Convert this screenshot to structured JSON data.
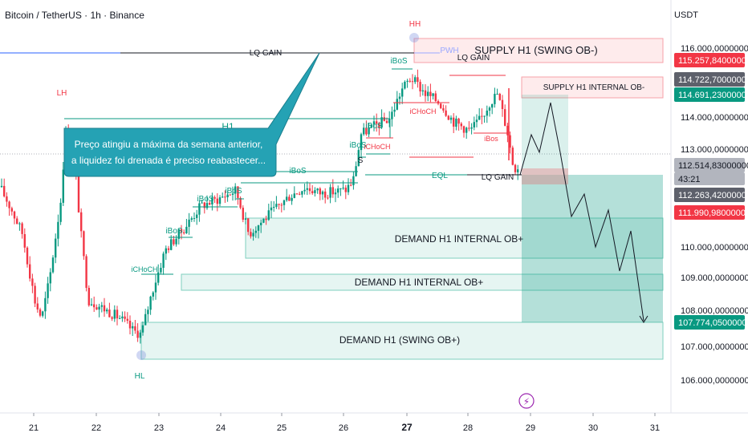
{
  "header": {
    "symbol_title": "Bitcoin / TetherUS · 1h · Binance",
    "currency": "USDT"
  },
  "callout": {
    "line1": "Preço atingiu a máxima da semana anterior,",
    "line2": "a liquidez foi drenada é preciso reabastecer..."
  },
  "chart_data": {
    "type": "candlestick",
    "instrument": "Bitcoin / TetherUS",
    "timeframe": "1h",
    "exchange": "Binance",
    "currency": "USDT",
    "y_range": [
      105300,
      117300
    ],
    "y_ticks": [
      "116.000,00000000",
      "114.000,00000000",
      "113.000,00000000",
      "110.000,00000000",
      "109.000,00000000",
      "108.000,00000000",
      "107.000,00000000",
      "106.000,00000000"
    ],
    "x_ticks": [
      "21",
      "22",
      "23",
      "24",
      "25",
      "26",
      "27",
      "28",
      "29",
      "30",
      "31"
    ],
    "price_labels": [
      {
        "text": "115.257,84000000",
        "color": "#f23645"
      },
      {
        "text": "114.722,70000000",
        "color": "#5d606b"
      },
      {
        "text": "114.691,23000000",
        "color": "#089981"
      },
      {
        "text": "112.514,83000000",
        "color": "#b2b5be"
      },
      {
        "text": "43:21",
        "color": "#b2b5be"
      },
      {
        "text": "112.263,42000000",
        "color": "#5d606b"
      },
      {
        "text": "111.990,98000000",
        "color": "#f23645"
      },
      {
        "text": "107.774,05000000",
        "color": "#089981"
      }
    ],
    "zones": [
      {
        "label": "SUPPLY H1 (SWING OB-)",
        "kind": "supply"
      },
      {
        "label": "SUPPLY H1 INTERNAL OB-",
        "kind": "supply"
      },
      {
        "label": "DEMAND H1 INTERNAL OB+",
        "kind": "demand"
      },
      {
        "label": "DEMAND H1 INTERNAL OB+",
        "kind": "demand"
      },
      {
        "label": "DEMAND H1 (SWING OB+)",
        "kind": "demand"
      }
    ],
    "annotations": [
      "LH",
      "HL",
      "HH",
      "H1",
      "PWH",
      "LQ GAIN",
      "LQ GAIN",
      "LQ GAIN",
      "EQL",
      "iBoS",
      "iBoS",
      "iBoS",
      "iBoS",
      "iBoS",
      "iBoS",
      "iBoS",
      "iCHoCH",
      "iCHoCH",
      "iCHoCH",
      "iBos",
      "S"
    ],
    "projection": {
      "from": 112400,
      "to": 107774
    }
  }
}
